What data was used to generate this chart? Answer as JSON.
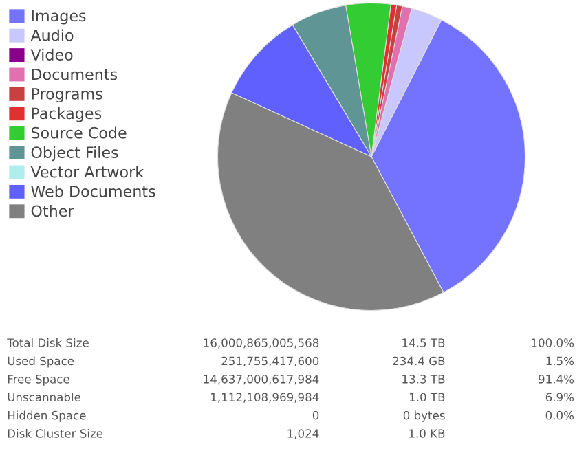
{
  "chart_data": {
    "type": "pie",
    "categories": [
      "Images",
      "Audio",
      "Video",
      "Documents",
      "Programs",
      "Packages",
      "Source Code",
      "Object Files",
      "Vector Artwork",
      "Web Documents",
      "Other"
    ],
    "values": [
      34.7,
      3.3,
      0,
      1.0,
      0.6,
      0.6,
      4.7,
      5.9,
      0,
      9.6,
      39.6
    ],
    "colors": [
      "#7373ff",
      "#c8c8ff",
      "#8b008b",
      "#e070b0",
      "#c84040",
      "#e03030",
      "#33cc33",
      "#5f9595",
      "#b0eeee",
      "#6060ff",
      "#808080"
    ],
    "legend": "top left",
    "annotations": [
      "Total Disk Size",
      "16,000,865,005,568",
      "14.5 TB",
      "100.0%",
      "Used Space",
      "251,755,417,600",
      "234.4 GB",
      "1.5%",
      "Free Space",
      "14,637,000,617,984",
      "13.3 TB",
      "91.4%",
      "Unscannable",
      "1,112,108,969,984",
      "1.0 TB",
      "6.9%",
      "Hidden Space",
      "0",
      "0 bytes",
      "0.0%",
      "Disk Cluster Size",
      "1,024",
      "1.0 KB"
    ]
  }
}
